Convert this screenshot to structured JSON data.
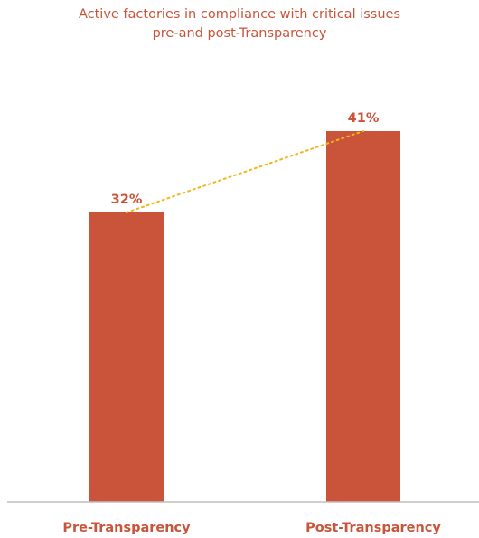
{
  "chart_data": {
    "type": "bar",
    "title": [
      "Active factories in compliance with critical issues",
      "pre-and post-Transparency"
    ],
    "categories": [
      "Pre-Transparency",
      "Post-Transparency"
    ],
    "values": [
      32,
      41
    ],
    "value_labels": [
      "32%",
      "41%"
    ],
    "ylim": [
      0,
      50
    ],
    "grid": false,
    "legend": "none",
    "trend_line": "dotted",
    "colors": {
      "bar": "#c9543a",
      "trend": "#f2b619",
      "axis": "#bfbfbf",
      "text": "#c9543a"
    }
  }
}
